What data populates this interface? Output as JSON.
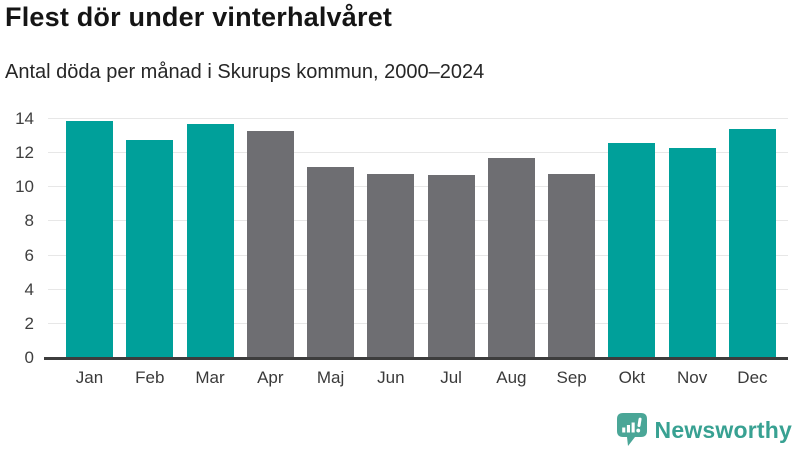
{
  "header": {
    "title": "Flest dör under vinterhalvåret",
    "subtitle": "Antal döda per månad i Skurups kommun, 2000–2024"
  },
  "chart_data": {
    "type": "bar",
    "title": "Flest dör under vinterhalvåret",
    "subtitle": "Antal döda per månad i Skurups kommun, 2000–2024",
    "categories": [
      "Jan",
      "Feb",
      "Mar",
      "Apr",
      "Maj",
      "Jun",
      "Jul",
      "Aug",
      "Sep",
      "Okt",
      "Nov",
      "Dec"
    ],
    "values": [
      13.9,
      12.8,
      13.7,
      13.3,
      11.2,
      10.8,
      10.7,
      11.7,
      10.8,
      12.6,
      12.3,
      13.4
    ],
    "highlighted": [
      true,
      true,
      true,
      false,
      false,
      false,
      false,
      false,
      false,
      true,
      true,
      true
    ],
    "colors": {
      "highlight": "#00a09a",
      "default": "#6e6e72",
      "gridline": "#e7e7e7",
      "axis": "#3d3d3d"
    },
    "xlabel": "",
    "ylabel": "",
    "ylim": [
      0,
      14
    ],
    "yticks": [
      0,
      2,
      4,
      6,
      8,
      10,
      12,
      14
    ],
    "grid": "horizontal",
    "legend": "none"
  },
  "footer": {
    "brand": "Newsworthy",
    "brand_color": "#38a192",
    "logo_icon_color": "#4aa697",
    "logo_icon": "newsworthy-bubble-chart-icon"
  }
}
